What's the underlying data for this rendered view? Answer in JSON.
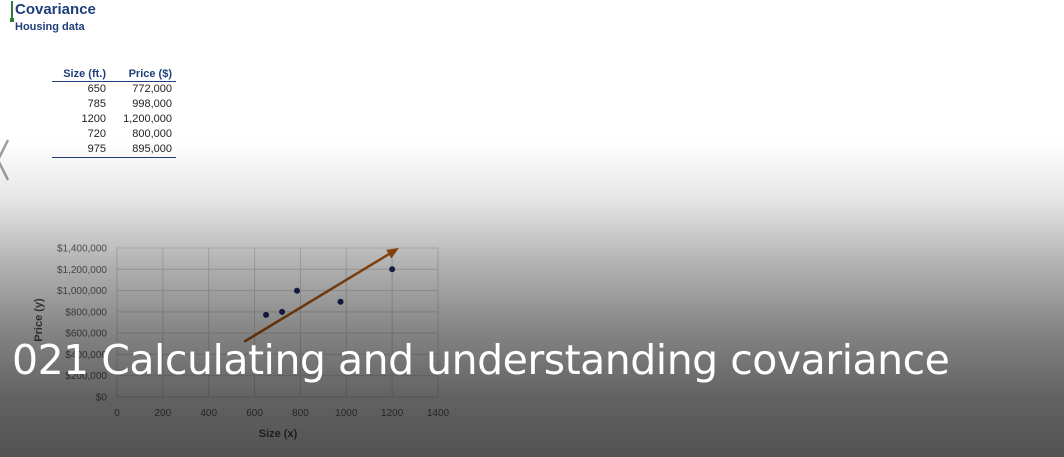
{
  "sheet": {
    "title": "Covariance",
    "subtitle": "Housing data",
    "table": {
      "headers": [
        "Size (ft.)",
        "Price ($)"
      ],
      "rows": [
        [
          "650",
          "772,000"
        ],
        [
          "785",
          "998,000"
        ],
        [
          "1200",
          "1,200,000"
        ],
        [
          "720",
          "800,000"
        ],
        [
          "975",
          "895,000"
        ]
      ]
    }
  },
  "chart_data": {
    "type": "scatter",
    "title": "",
    "xlabel": "Size (x)",
    "ylabel": "Price (y)",
    "xlim": [
      0,
      1400
    ],
    "ylim": [
      0,
      1400000
    ],
    "x_ticks": [
      "0",
      "200",
      "400",
      "600",
      "800",
      "1000",
      "1200",
      "1400"
    ],
    "y_ticks": [
      "$0",
      "$200,000",
      "$400,000",
      "$600,000",
      "$800,000",
      "$1,000,000",
      "$1,200,000",
      "$1,400,000"
    ],
    "grid": true,
    "points": [
      {
        "x": 650,
        "y": 772000
      },
      {
        "x": 785,
        "y": 998000
      },
      {
        "x": 1200,
        "y": 1200000
      },
      {
        "x": 720,
        "y": 800000
      },
      {
        "x": 975,
        "y": 895000
      }
    ],
    "trend_arrow": {
      "x1": 555,
      "y1": 520000,
      "x2": 1230,
      "y2": 1400000
    },
    "point_color": "#1f2a66",
    "arrow_color": "#b35a12"
  },
  "video": {
    "title": "021 Calculating and understanding covariance"
  }
}
